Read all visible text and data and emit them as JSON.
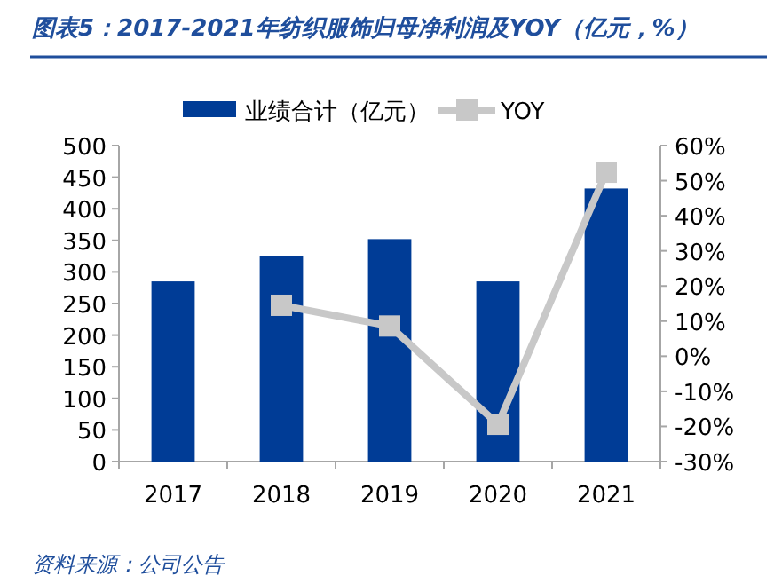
{
  "chart_data": {
    "type": "bar",
    "title": "图表5：2017-2021年纺织服饰归母净利润及YOY（亿元，%）",
    "annotations": [
      "资料来源：公司公告"
    ],
    "categories": [
      "2017",
      "2018",
      "2019",
      "2020",
      "2021"
    ],
    "series": [
      {
        "name": "业绩合计（亿元）",
        "color": "#003c96",
        "values": [
          285,
          325,
          352,
          285,
          432
        ]
      },
      {
        "name": "YOY",
        "type": "line",
        "axis": "y2",
        "color": "#c8c8c8",
        "values": [
          null,
          14.5,
          8.6,
          -19.4,
          52.4
        ]
      }
    ],
    "ylim": [
      0,
      500
    ],
    "yticks": [
      0,
      50,
      100,
      150,
      200,
      250,
      300,
      350,
      400,
      450,
      500
    ],
    "y2lim": [
      -30,
      60
    ],
    "y2ticks": [
      {
        "value": -30,
        "label": "-30%"
      },
      {
        "value": -20,
        "label": "-20%"
      },
      {
        "value": -10,
        "label": "-10%"
      },
      {
        "value": 0,
        "label": "0%"
      },
      {
        "value": 10,
        "label": "10%"
      },
      {
        "value": 20,
        "label": "20%"
      },
      {
        "value": 30,
        "label": "30%"
      },
      {
        "value": 40,
        "label": "40%"
      },
      {
        "value": 50,
        "label": "50%"
      },
      {
        "value": 60,
        "label": "60%"
      }
    ],
    "legend": "top",
    "marker": "square",
    "line_style": "solid"
  }
}
